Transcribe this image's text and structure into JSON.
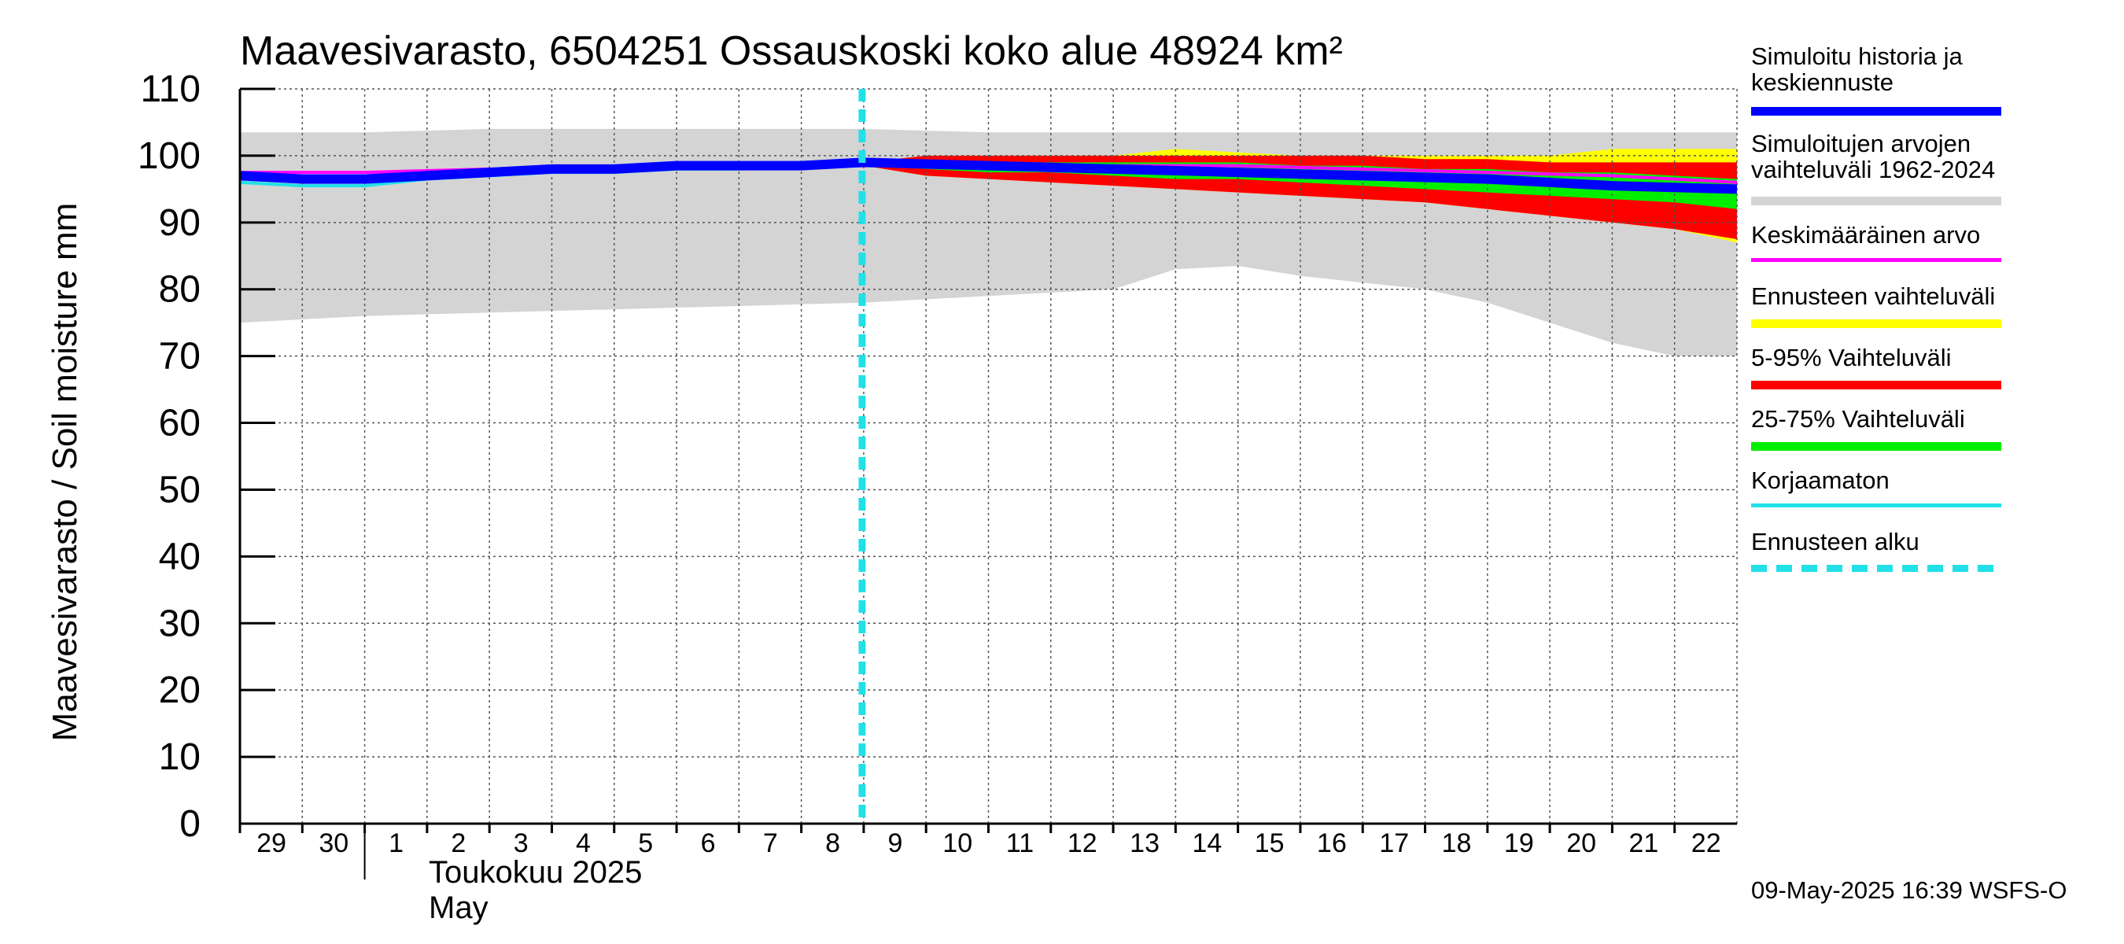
{
  "chart_data": {
    "type": "area",
    "title": "Maavesivarasto, 6504251 Ossauskoski koko alue 48924 km²",
    "ylabel": "Maavesivarasto / Soil moisture   mm",
    "ylim": [
      0,
      110
    ],
    "yticks": [
      0,
      10,
      20,
      30,
      40,
      50,
      60,
      70,
      80,
      90,
      100,
      110
    ],
    "xlim": [
      0,
      24
    ],
    "x_ticks": [
      {
        "x": 0,
        "label": "29"
      },
      {
        "x": 1,
        "label": "30"
      },
      {
        "x": 2,
        "label": "1"
      },
      {
        "x": 3,
        "label": "2"
      },
      {
        "x": 4,
        "label": "3"
      },
      {
        "x": 5,
        "label": "4"
      },
      {
        "x": 6,
        "label": "5"
      },
      {
        "x": 7,
        "label": "6"
      },
      {
        "x": 8,
        "label": "7"
      },
      {
        "x": 9,
        "label": "8"
      },
      {
        "x": 10,
        "label": "9"
      },
      {
        "x": 11,
        "label": "10"
      },
      {
        "x": 12,
        "label": "11"
      },
      {
        "x": 13,
        "label": "12"
      },
      {
        "x": 14,
        "label": "13"
      },
      {
        "x": 15,
        "label": "14"
      },
      {
        "x": 16,
        "label": "15"
      },
      {
        "x": 17,
        "label": "16"
      },
      {
        "x": 18,
        "label": "17"
      },
      {
        "x": 19,
        "label": "18"
      },
      {
        "x": 20,
        "label": "19"
      },
      {
        "x": 21,
        "label": "20"
      },
      {
        "x": 22,
        "label": "21"
      },
      {
        "x": 23,
        "label": "22"
      }
    ],
    "month_label_fi": "Toukokuu  2025",
    "month_label_en": "May",
    "month_start_x": 2,
    "forecast_start_x": 10,
    "grid": true,
    "legend_position": "right",
    "series": [
      {
        "name": "Simuloitujen arvojen vaihteluväli 1962-2024",
        "color": "#d4d4d4",
        "x": [
          0,
          2,
          4,
          6,
          8,
          10,
          12,
          14,
          15,
          16,
          17,
          18,
          19,
          20,
          21,
          22,
          23,
          24
        ],
        "low": [
          75,
          76,
          76.5,
          77,
          77.5,
          78,
          79,
          80,
          83,
          83.5,
          82,
          81,
          80,
          78,
          75,
          72,
          70,
          70
        ],
        "high": [
          103.5,
          103.5,
          104,
          104,
          104,
          104,
          103.5,
          103.5,
          103.5,
          103.5,
          103.5,
          103.5,
          103.5,
          103.5,
          103.5,
          103.5,
          103.5,
          103.5
        ]
      },
      {
        "name": "Ennusteen vaihteluväli",
        "color": "#ffff00",
        "x": [
          10,
          11,
          12,
          13,
          14,
          15,
          16,
          17,
          18,
          19,
          20,
          21,
          22,
          23,
          24
        ],
        "low": [
          98.5,
          97,
          96.5,
          96,
          95.5,
          95,
          94.5,
          94,
          93.5,
          93,
          92,
          91,
          90,
          89,
          87
        ],
        "high": [
          99,
          100,
          100,
          100,
          100,
          101,
          100.5,
          100,
          100,
          100,
          100,
          100,
          101,
          101,
          101
        ]
      },
      {
        "name": "5-95% Vaihteluväli",
        "color": "#ff0000",
        "x": [
          10,
          11,
          12,
          13,
          14,
          15,
          16,
          17,
          18,
          19,
          20,
          21,
          22,
          23,
          24
        ],
        "low": [
          98.5,
          97,
          96.5,
          96,
          95.5,
          95,
          94.5,
          94,
          93.5,
          93,
          92,
          91,
          90,
          89,
          87.5
        ],
        "high": [
          99,
          100,
          100,
          100,
          100,
          100,
          100,
          100,
          100,
          99.5,
          99.5,
          99,
          99,
          99,
          99
        ]
      },
      {
        "name": "25-75% Vaihteluväli",
        "color": "#00ee00",
        "x": [
          10,
          11,
          12,
          13,
          14,
          15,
          16,
          17,
          18,
          19,
          20,
          21,
          22,
          23,
          24
        ],
        "low": [
          98.5,
          98,
          97.5,
          97.5,
          97,
          96.5,
          96.5,
          96,
          95.5,
          95,
          94.5,
          94,
          93.5,
          93,
          92
        ],
        "high": [
          99,
          99,
          99,
          99,
          99,
          99,
          99,
          98.5,
          98.5,
          98,
          98,
          97.5,
          97.5,
          97,
          96.5
        ]
      },
      {
        "name": "Keskimääräinen arvo",
        "color": "#ff00ff",
        "x": [
          0,
          2,
          4,
          6,
          8,
          10,
          12,
          14,
          16,
          18,
          20,
          22,
          24
        ],
        "values": [
          97.5,
          97.5,
          98,
          98,
          98.5,
          98.5,
          98.5,
          98.5,
          98.5,
          98,
          97.5,
          97,
          96
        ]
      },
      {
        "name": "Korjaamaton",
        "color": "#22e0e8",
        "x": [
          0,
          1,
          2,
          3,
          4,
          5,
          6,
          7,
          8,
          9,
          10
        ],
        "values": [
          96,
          95.5,
          95.5,
          96.5,
          97,
          97.5,
          97.5,
          98,
          98,
          98.5,
          98.5
        ]
      },
      {
        "name": "Simuloitu historia ja keskiennuste",
        "color": "#0000ff",
        "x": [
          0,
          1,
          2,
          3,
          4,
          5,
          6,
          7,
          8,
          9,
          10,
          12,
          14,
          16,
          18,
          20,
          22,
          24
        ],
        "values": [
          97,
          96.5,
          96.5,
          97,
          97.5,
          98,
          98,
          98.5,
          98.5,
          98.5,
          99,
          98.5,
          98,
          97.5,
          97,
          96.5,
          95.5,
          95
        ]
      }
    ]
  },
  "legend": {
    "items": [
      {
        "label": "Simuloitu historia ja\nkeskiennuste",
        "color": "#0000ff",
        "style": "thick"
      },
      {
        "label": "Simuloitujen arvojen\nvaihteluväli 1962-2024",
        "color": "#d4d4d4",
        "style": "thick"
      },
      {
        "label": "Keskimääräinen arvo",
        "color": "#ff00ff",
        "style": "thin"
      },
      {
        "label": "Ennusteen vaihteluväli",
        "color": "#ffff00",
        "style": "thick"
      },
      {
        "label": "5-95% Vaihteluväli",
        "color": "#ff0000",
        "style": "thick"
      },
      {
        "label": "25-75% Vaihteluväli",
        "color": "#00ee00",
        "style": "thick"
      },
      {
        "label": "Korjaamaton",
        "color": "#22e0e8",
        "style": "thin"
      },
      {
        "label": "Ennusteen alku",
        "color": "#22e0e8",
        "style": "dashed"
      }
    ]
  },
  "footer": {
    "timestamp": "09-May-2025 16:39 WSFS-O"
  }
}
